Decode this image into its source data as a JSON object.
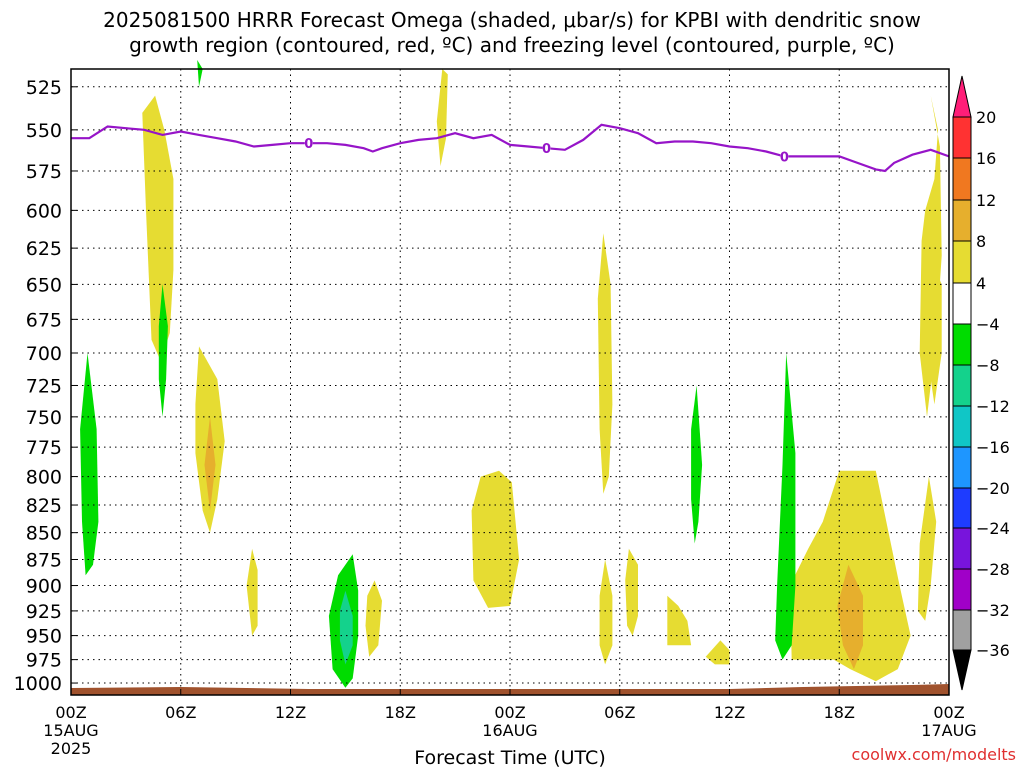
{
  "title_line1": "2025081500 HRRR Forecast Omega (shaded, μbar/s) for KPBI with dendritic snow",
  "title_line2": "growth region (contoured, red, ºC) and freezing level (contoured, purple, ºC)",
  "chart_data": {
    "type": "heatmap",
    "xlabel": "Forecast Time (UTC)",
    "xlim": [
      0,
      48
    ],
    "x_ticks": [
      {
        "hour": 0,
        "label": "00Z",
        "sub1": "15AUG",
        "sub2": "2025"
      },
      {
        "hour": 6,
        "label": "06Z"
      },
      {
        "hour": 12,
        "label": "12Z"
      },
      {
        "hour": 18,
        "label": "18Z"
      },
      {
        "hour": 24,
        "label": "00Z",
        "sub1": "16AUG"
      },
      {
        "hour": 30,
        "label": "06Z"
      },
      {
        "hour": 36,
        "label": "12Z"
      },
      {
        "hour": 42,
        "label": "18Z"
      },
      {
        "hour": 48,
        "label": "00Z",
        "sub1": "17AUG"
      }
    ],
    "y_ticks": [
      525,
      550,
      575,
      600,
      625,
      650,
      675,
      700,
      725,
      750,
      775,
      800,
      825,
      850,
      875,
      900,
      925,
      950,
      975,
      1000
    ],
    "grid": true,
    "colorbar": {
      "levels": [
        "20",
        "16",
        "12",
        "8",
        "4",
        "−4",
        "−8",
        "−12",
        "−16",
        "−20",
        "−24",
        "−28",
        "−32",
        "−36"
      ],
      "colors": [
        "#ff1e78",
        "#ff3232",
        "#f07820",
        "#e6af2d",
        "#e6dc32",
        "#ffffff",
        "#00dc00",
        "#14d28c",
        "#10c6c6",
        "#1e96ff",
        "#1e3cff",
        "#7814dc",
        "#a000c8",
        "#a0a0a0",
        "#000000"
      ]
    },
    "freezing_level": {
      "color": "#9614c8",
      "label": "0",
      "label_hours": [
        13,
        26,
        39
      ],
      "points": [
        [
          0,
          555
        ],
        [
          1,
          555
        ],
        [
          2,
          548
        ],
        [
          3,
          549
        ],
        [
          4,
          550
        ],
        [
          5,
          553
        ],
        [
          6,
          551
        ],
        [
          7,
          553
        ],
        [
          8,
          555
        ],
        [
          9,
          557
        ],
        [
          10,
          560
        ],
        [
          11,
          559
        ],
        [
          12,
          558
        ],
        [
          13,
          558
        ],
        [
          14,
          558
        ],
        [
          15,
          559
        ],
        [
          16,
          561
        ],
        [
          16.5,
          563
        ],
        [
          17,
          561
        ],
        [
          18,
          558
        ],
        [
          19,
          556
        ],
        [
          20,
          555
        ],
        [
          21,
          552
        ],
        [
          22,
          555
        ],
        [
          23,
          553
        ],
        [
          24,
          559
        ],
        [
          25,
          560
        ],
        [
          26,
          561
        ],
        [
          27,
          562
        ],
        [
          28,
          556
        ],
        [
          29,
          547
        ],
        [
          30,
          549
        ],
        [
          31,
          552
        ],
        [
          32,
          558
        ],
        [
          33,
          557
        ],
        [
          34,
          557
        ],
        [
          35,
          558
        ],
        [
          36,
          560
        ],
        [
          37,
          561
        ],
        [
          38,
          563
        ],
        [
          39,
          566
        ],
        [
          40,
          566
        ],
        [
          41,
          566
        ],
        [
          42,
          566
        ],
        [
          43,
          570
        ],
        [
          44,
          574
        ],
        [
          44.5,
          575
        ],
        [
          45,
          570
        ],
        [
          46,
          565
        ],
        [
          47,
          562
        ],
        [
          48,
          566
        ]
      ]
    },
    "omega_regions": [
      {
        "level": "4 to 8",
        "color": "#e6dc32",
        "polygon": [
          [
            4.6,
            530
          ],
          [
            5.1,
            550
          ],
          [
            5.6,
            580
          ],
          [
            5.6,
            640
          ],
          [
            5.4,
            685
          ],
          [
            4.9,
            706
          ],
          [
            4.4,
            690
          ],
          [
            4.1,
            600
          ],
          [
            3.9,
            540
          ]
        ]
      },
      {
        "level": "4 to 8",
        "color": "#e6dc32",
        "polygon": [
          [
            20.3,
            515
          ],
          [
            20.6,
            518
          ],
          [
            20.5,
            555
          ],
          [
            20.2,
            572
          ],
          [
            20.0,
            545
          ]
        ]
      },
      {
        "level": "4 to 8",
        "color": "#e6dc32",
        "polygon": [
          [
            23.4,
            795
          ],
          [
            24.1,
            805
          ],
          [
            24.5,
            875
          ],
          [
            24.0,
            920
          ],
          [
            22.8,
            922
          ],
          [
            22.0,
            895
          ],
          [
            21.9,
            830
          ],
          [
            22.4,
            800
          ]
        ]
      },
      {
        "level": "4 to 8",
        "color": "#e6dc32",
        "polygon": [
          [
            42.0,
            795
          ],
          [
            44.0,
            795
          ],
          [
            44.7,
            850
          ],
          [
            45.3,
            900
          ],
          [
            45.9,
            950
          ],
          [
            45.2,
            985
          ],
          [
            44.0,
            998
          ],
          [
            42.6,
            985
          ],
          [
            41.7,
            975
          ],
          [
            39.4,
            975
          ],
          [
            39.3,
            900
          ],
          [
            40.3,
            865
          ],
          [
            41.1,
            840
          ]
        ]
      },
      {
        "level": "4 to 8",
        "color": "#e6dc32",
        "polygon": [
          [
            7.0,
            695
          ],
          [
            8.0,
            720
          ],
          [
            8.4,
            770
          ],
          [
            8.0,
            820
          ],
          [
            7.6,
            850
          ],
          [
            7.2,
            830
          ],
          [
            6.8,
            780
          ],
          [
            6.8,
            740
          ]
        ]
      },
      {
        "level": "4 to 8",
        "color": "#e6dc32",
        "polygon": [
          [
            30.5,
            865
          ],
          [
            31.0,
            880
          ],
          [
            31.0,
            930
          ],
          [
            30.7,
            950
          ],
          [
            30.4,
            940
          ],
          [
            30.3,
            895
          ]
        ]
      },
      {
        "level": "4 to 8",
        "color": "#e6dc32",
        "polygon": [
          [
            29.2,
            875
          ],
          [
            29.6,
            910
          ],
          [
            29.6,
            960
          ],
          [
            29.2,
            980
          ],
          [
            28.9,
            960
          ],
          [
            28.9,
            910
          ]
        ]
      },
      {
        "level": "4 to 8",
        "color": "#e6dc32",
        "polygon": [
          [
            29.1,
            615
          ],
          [
            29.5,
            650
          ],
          [
            29.6,
            740
          ],
          [
            29.4,
            800
          ],
          [
            29.1,
            815
          ],
          [
            28.9,
            760
          ],
          [
            28.8,
            660
          ]
        ]
      },
      {
        "level": "4 to 8",
        "color": "#e6dc32",
        "polygon": [
          [
            32.6,
            910
          ],
          [
            33.2,
            920
          ],
          [
            33.7,
            935
          ],
          [
            33.9,
            960
          ],
          [
            32.6,
            960
          ],
          [
            32.6,
            935
          ]
        ]
      },
      {
        "level": "4 to 8",
        "color": "#e6dc32",
        "polygon": [
          [
            35.5,
            955
          ],
          [
            36.0,
            965
          ],
          [
            36.0,
            980
          ],
          [
            35.2,
            980
          ],
          [
            34.7,
            972
          ]
        ]
      },
      {
        "level": "4 to 8",
        "color": "#e6dc32",
        "polygon": [
          [
            9.9,
            865
          ],
          [
            10.2,
            885
          ],
          [
            10.2,
            940
          ],
          [
            9.9,
            950
          ],
          [
            9.6,
            900
          ]
        ]
      },
      {
        "level": "4 to 8",
        "color": "#e6dc32",
        "polygon": [
          [
            16.6,
            895
          ],
          [
            17.0,
            915
          ],
          [
            16.8,
            960
          ],
          [
            16.3,
            972
          ],
          [
            16.1,
            940
          ],
          [
            16.2,
            910
          ]
        ]
      },
      {
        "level": "4 to 8",
        "color": "#e6dc32",
        "polygon": [
          [
            47.0,
            632
          ],
          [
            47.6,
            650
          ],
          [
            47.6,
            700
          ],
          [
            47.2,
            740
          ],
          [
            46.8,
            700
          ],
          [
            46.8,
            650
          ]
        ]
      },
      {
        "level": "4 to 8",
        "color": "#e6dc32",
        "polygon": [
          [
            47.0,
            530
          ],
          [
            47.4,
            550
          ],
          [
            47.2,
            580
          ],
          [
            46.7,
            600
          ],
          [
            46.5,
            620
          ],
          [
            46.4,
            700
          ],
          [
            46.8,
            750
          ],
          [
            47.3,
            690
          ],
          [
            47.6,
            630
          ],
          [
            47.5,
            560
          ]
        ]
      },
      {
        "level": "4 to 8",
        "color": "#e6dc32",
        "polygon": [
          [
            46.9,
            800
          ],
          [
            47.3,
            840
          ],
          [
            47.0,
            900
          ],
          [
            46.7,
            935
          ],
          [
            46.3,
            925
          ],
          [
            46.4,
            860
          ]
        ]
      },
      {
        "level": "8 to 12",
        "color": "#e6af2d",
        "polygon": [
          [
            42.5,
            880
          ],
          [
            43.3,
            910
          ],
          [
            43.3,
            960
          ],
          [
            42.8,
            985
          ],
          [
            42.2,
            960
          ],
          [
            41.9,
            920
          ]
        ]
      },
      {
        "level": "8 to 12",
        "color": "#e6af2d",
        "polygon": [
          [
            7.6,
            750
          ],
          [
            7.9,
            790
          ],
          [
            7.6,
            830
          ],
          [
            7.3,
            790
          ]
        ]
      },
      {
        "level": "-8 to -4",
        "color": "#00dc00",
        "polygon": [
          [
            0.9,
            700
          ],
          [
            1.4,
            760
          ],
          [
            1.5,
            840
          ],
          [
            1.2,
            880
          ],
          [
            0.8,
            890
          ],
          [
            0.6,
            840
          ],
          [
            0.5,
            760
          ]
        ]
      },
      {
        "level": "-8 to -4",
        "color": "#00dc00",
        "polygon": [
          [
            5.0,
            650
          ],
          [
            5.3,
            680
          ],
          [
            5.2,
            720
          ],
          [
            5.0,
            750
          ],
          [
            4.8,
            720
          ],
          [
            4.8,
            680
          ]
        ]
      },
      {
        "level": "-8 to -4",
        "color": "#00dc00",
        "polygon": [
          [
            15.4,
            870
          ],
          [
            15.7,
            905
          ],
          [
            15.7,
            950
          ],
          [
            15.4,
            995
          ],
          [
            15.0,
            1005
          ],
          [
            14.3,
            985
          ],
          [
            14.1,
            930
          ],
          [
            14.6,
            890
          ]
        ]
      },
      {
        "level": "-8 to -4",
        "color": "#00dc00",
        "polygon": [
          [
            34.2,
            725
          ],
          [
            34.5,
            790
          ],
          [
            34.3,
            840
          ],
          [
            34.1,
            860
          ],
          [
            33.9,
            820
          ],
          [
            33.9,
            760
          ]
        ]
      },
      {
        "level": "-8 to -4",
        "color": "#00dc00",
        "polygon": [
          [
            39.1,
            700
          ],
          [
            39.6,
            780
          ],
          [
            39.6,
            900
          ],
          [
            39.4,
            960
          ],
          [
            38.9,
            975
          ],
          [
            38.5,
            955
          ],
          [
            38.6,
            900
          ],
          [
            38.9,
            790
          ]
        ]
      },
      {
        "level": "-8 to -4",
        "color": "#00dc00",
        "polygon": [
          [
            6.9,
            510
          ],
          [
            7.2,
            515
          ],
          [
            7.0,
            525
          ]
        ]
      },
      {
        "level": "-12 to -8",
        "color": "#14d28c",
        "polygon": [
          [
            15.0,
            905
          ],
          [
            15.4,
            930
          ],
          [
            15.4,
            960
          ],
          [
            15.0,
            980
          ],
          [
            14.7,
            955
          ],
          [
            14.7,
            925
          ]
        ]
      }
    ]
  },
  "credit": "coolwx.com/modelts"
}
